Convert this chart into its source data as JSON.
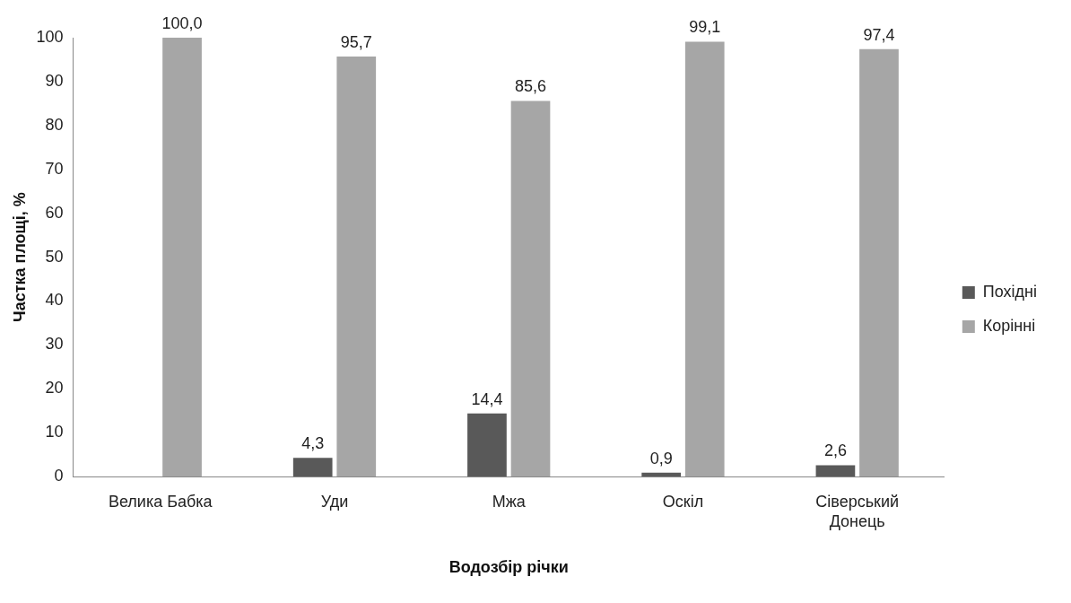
{
  "chart_data": {
    "type": "bar",
    "xlabel": "Водозбір річки",
    "ylabel": "Частка площі, %",
    "categories": [
      "Велика Бабка",
      "Уди",
      "Мжа",
      "Оскіл",
      "Сіверський Донець"
    ],
    "series": [
      {
        "name": "Похідні",
        "color": "#595959",
        "values": [
          null,
          4.3,
          14.4,
          0.9,
          2.6
        ],
        "value_labels": [
          null,
          "4,3",
          "14,4",
          "0,9",
          "2,6"
        ]
      },
      {
        "name": "Корінні",
        "color": "#a6a6a6",
        "values": [
          100.0,
          95.7,
          85.6,
          99.1,
          97.4
        ],
        "value_labels": [
          "100,0",
          "95,7",
          "85,6",
          "99,1",
          "97,4"
        ]
      }
    ],
    "ylim": [
      0,
      100
    ],
    "yticks": [
      0,
      10,
      20,
      30,
      40,
      50,
      60,
      70,
      80,
      90,
      100
    ],
    "grid": false,
    "legend": "right"
  }
}
